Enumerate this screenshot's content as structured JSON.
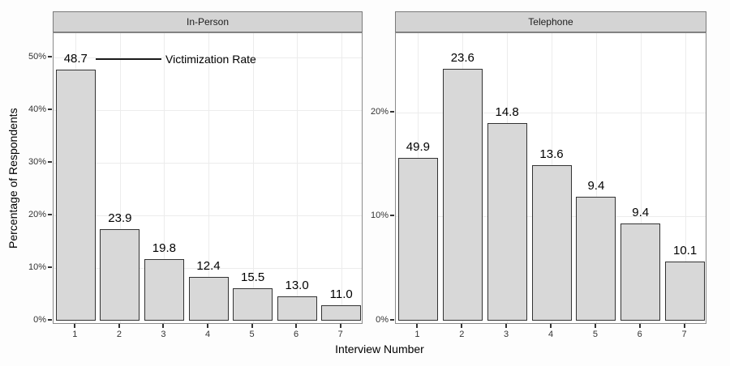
{
  "chart_data": {
    "type": "bar",
    "title": "",
    "xlabel": "Interview Number",
    "ylabel": "Percentage of Respondents",
    "categories": [
      "1",
      "2",
      "3",
      "4",
      "5",
      "6",
      "7"
    ],
    "grid": true,
    "legend": null,
    "annotation": {
      "pointed_value": "48.7",
      "label": "Victimization Rate"
    },
    "facets": [
      {
        "label": "In-Person",
        "ylim": [
          0,
          54.6
        ],
        "yticks": [
          0,
          10,
          20,
          30,
          40,
          50
        ],
        "ytick_labels": [
          "0%",
          "10%",
          "20%",
          "30%",
          "40%",
          "50%"
        ],
        "bar_values_pct_of_respondents": [
          47.7,
          17.4,
          11.7,
          8.3,
          6.2,
          4.6,
          2.9
        ],
        "bar_labels_victimization_rate": [
          "48.7",
          "23.9",
          "19.8",
          "12.4",
          "15.5",
          "13.0",
          "11.0"
        ]
      },
      {
        "label": "Telephone",
        "ylim": [
          0,
          27.6
        ],
        "yticks": [
          0,
          10,
          20
        ],
        "ytick_labels": [
          "0%",
          "10%",
          "20%"
        ],
        "bar_values_pct_of_respondents": [
          15.6,
          24.2,
          19.0,
          14.9,
          11.9,
          9.3,
          5.7
        ],
        "bar_labels_victimization_rate": [
          "49.9",
          "23.6",
          "14.8",
          "13.6",
          "9.4",
          "9.4",
          "10.1"
        ]
      }
    ]
  },
  "colors": {
    "bar_fill": "#d8d8d8",
    "bar_stroke": "#333333",
    "strip_background": "#d4d4d4",
    "strip_border": "#7a7a7a",
    "panel_border": "#8a8a8a",
    "gridline": "#ececec",
    "background": "#fdfdfd",
    "text": "#000000"
  }
}
